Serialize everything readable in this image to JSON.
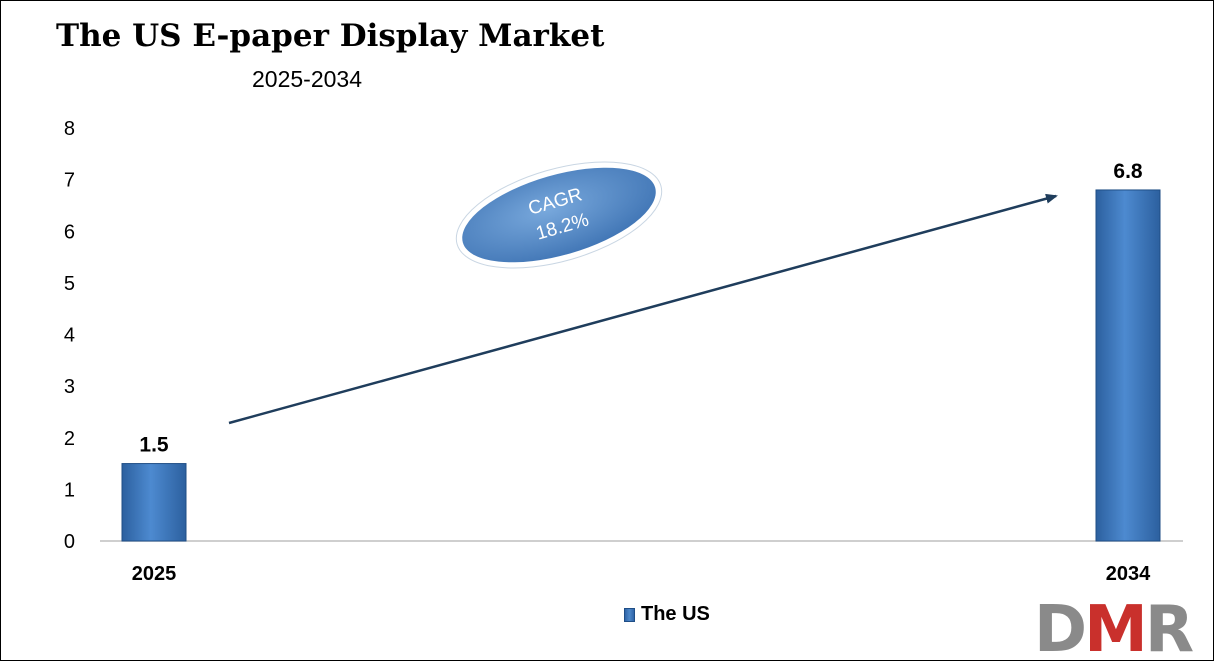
{
  "chart_data": {
    "type": "bar",
    "title": "The US E-paper Display Market",
    "subtitle": "2025-2034",
    "categories": [
      "2025",
      "2034"
    ],
    "series": [
      {
        "name": "The US",
        "values": [
          1.5,
          6.8
        ],
        "color": "#3b78bd"
      }
    ],
    "data_labels": [
      "1.5",
      "6.8"
    ],
    "ylim": [
      0,
      8
    ],
    "yticks": [
      "0",
      "1",
      "2",
      "3",
      "4",
      "5",
      "6",
      "7",
      "8"
    ],
    "xlabel": "",
    "ylabel": "",
    "grid": false,
    "legend_position": "bottom",
    "annotation": {
      "line1": "CAGR",
      "line2": "18.2%",
      "fill_color": "#5b8fcb",
      "arrow_color": "#1f3d5c"
    }
  },
  "logo": {
    "d": "D",
    "m": "M",
    "r": "R",
    "m_color": "#c9302c",
    "dr_color": "#8a8a8a"
  }
}
